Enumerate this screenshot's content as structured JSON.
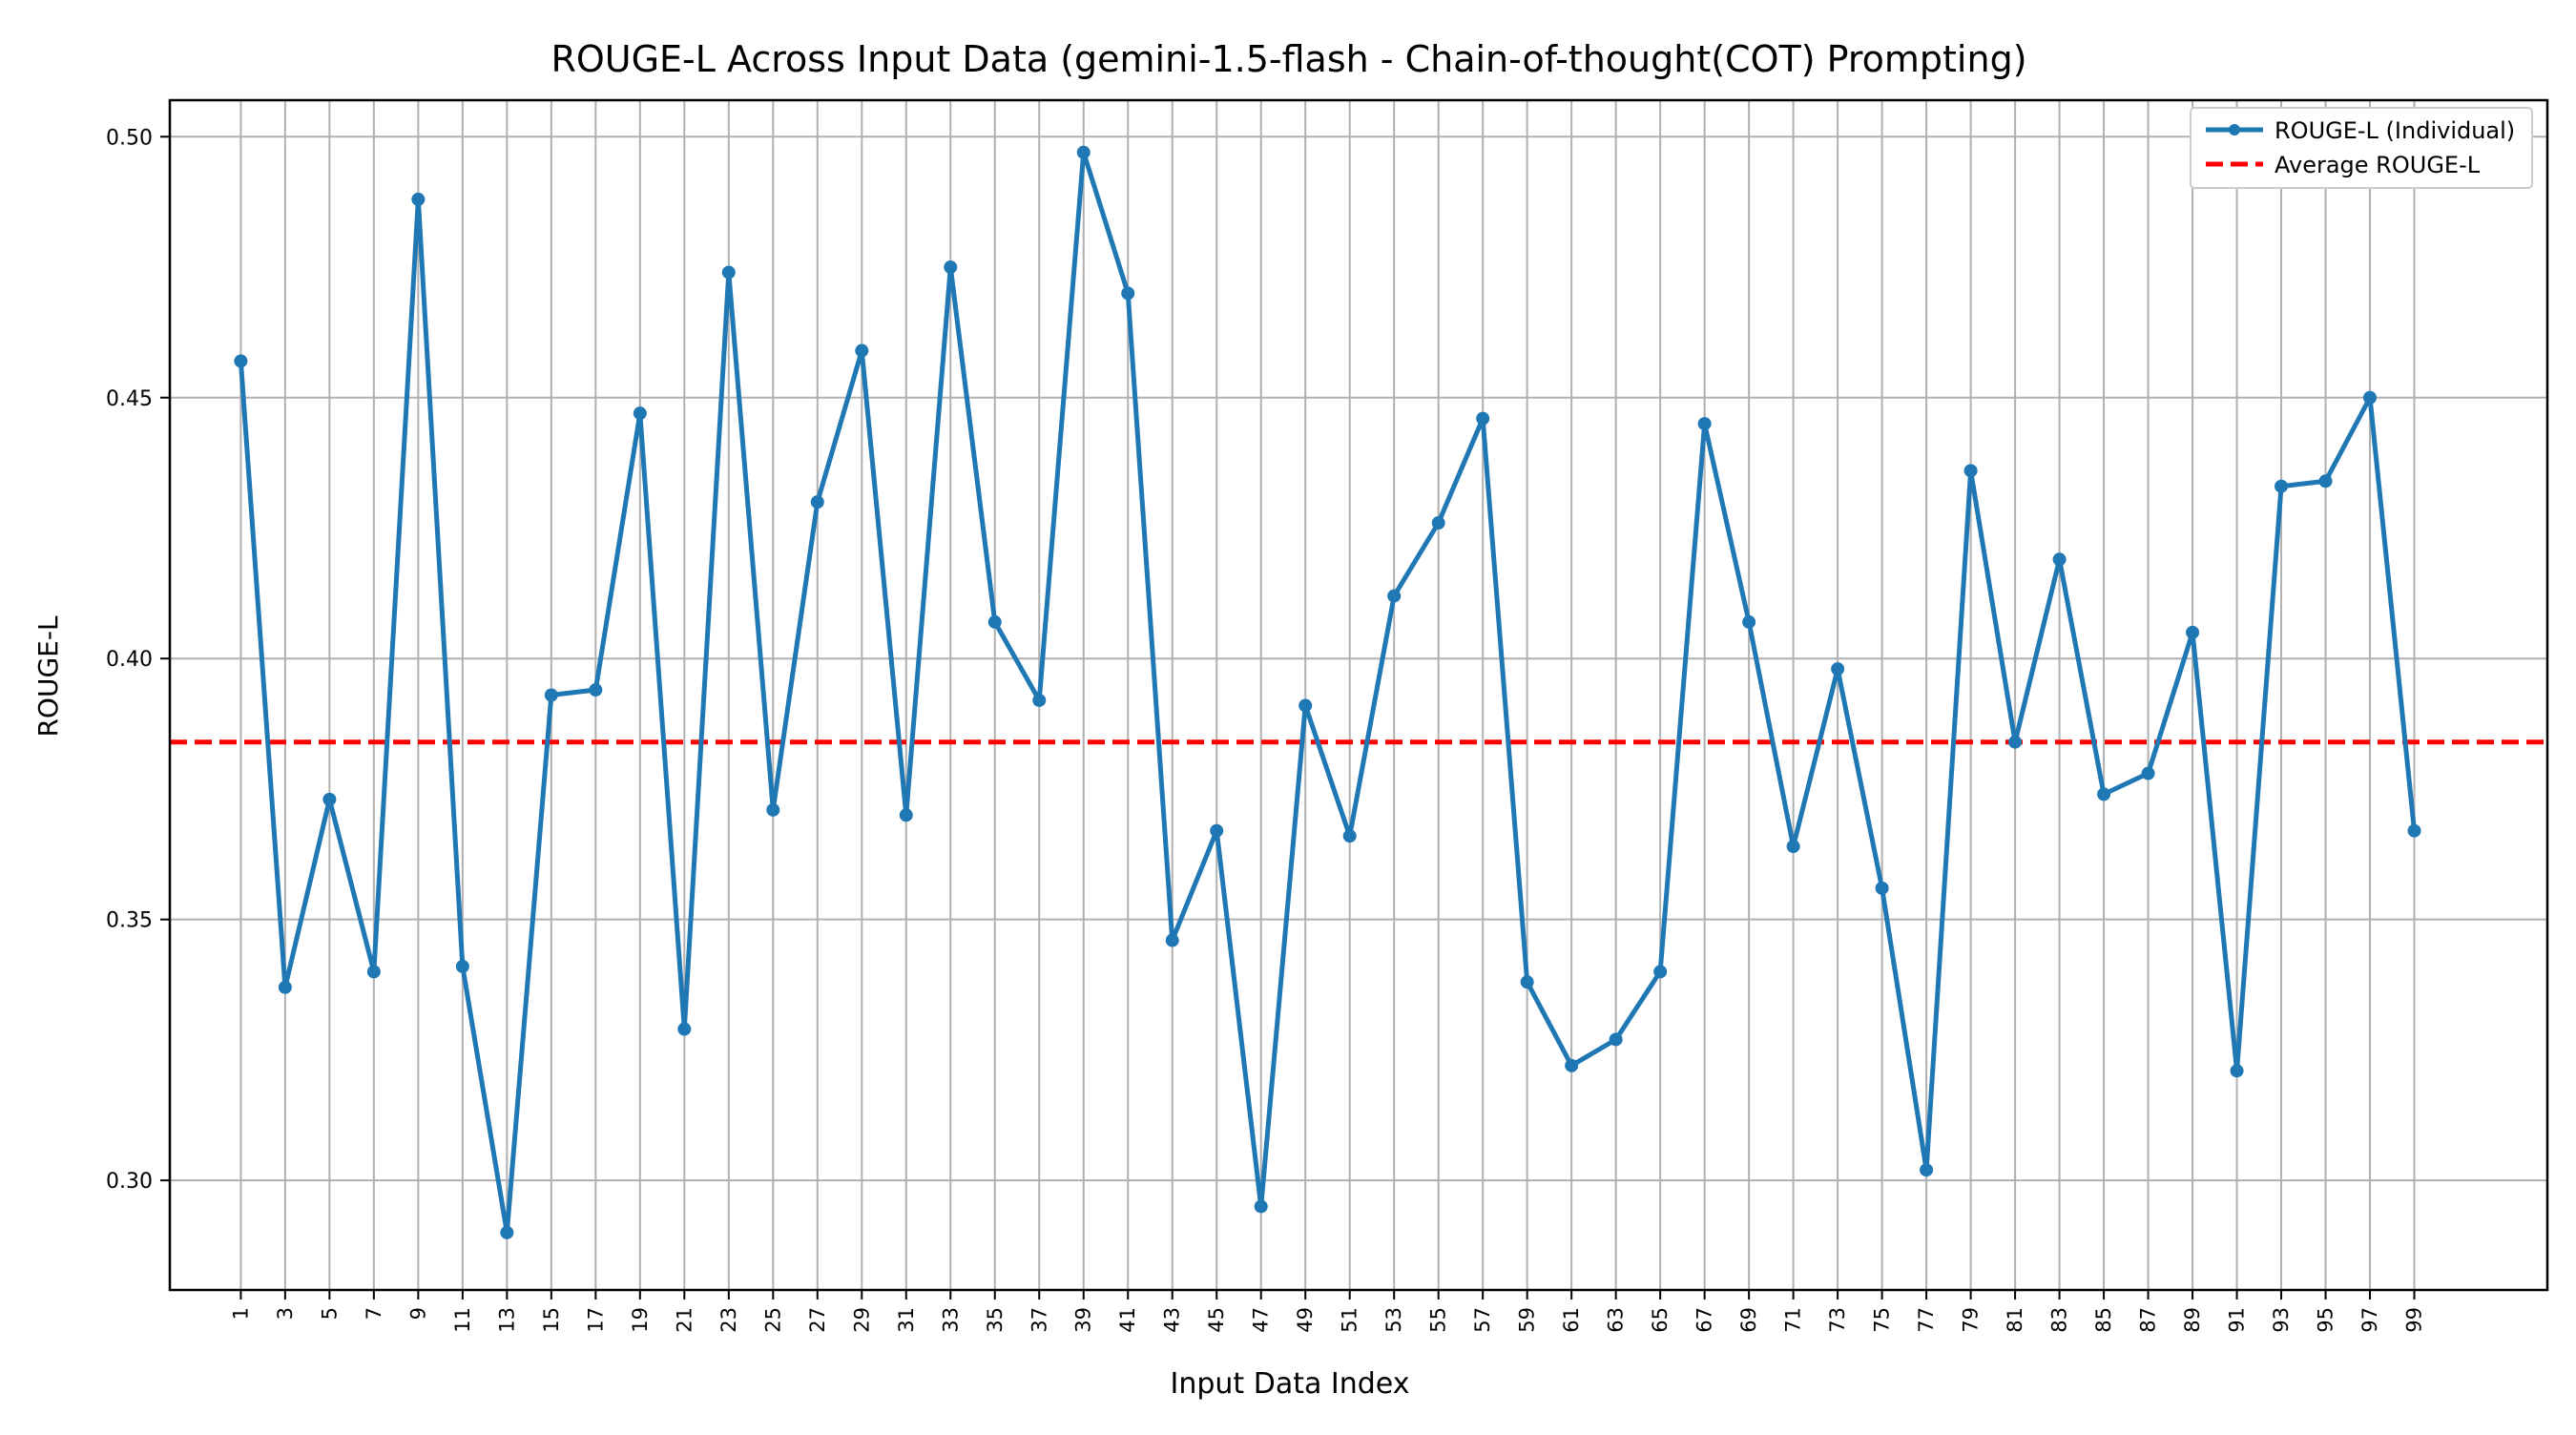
{
  "chart_data": {
    "type": "line",
    "title": "ROUGE-L Across Input Data (gemini-1.5-flash - Chain-of-thought(COT) Prompting)",
    "xlabel": "Input Data Index",
    "ylabel": "ROUGE-L",
    "x": [
      1,
      3,
      5,
      7,
      9,
      11,
      13,
      15,
      17,
      19,
      21,
      23,
      25,
      27,
      29,
      31,
      33,
      35,
      37,
      39,
      41,
      43,
      45,
      47,
      49,
      51,
      53,
      55,
      57,
      59,
      61,
      63,
      65,
      67,
      69,
      71,
      73,
      75,
      77,
      79,
      81,
      83,
      85,
      87,
      89,
      91,
      93,
      95,
      97,
      99
    ],
    "y_ticks": [
      "0.30",
      "0.35",
      "0.40",
      "0.45",
      "0.50"
    ],
    "ylim": [
      0.279,
      0.507
    ],
    "xlim": [
      -2.2,
      105
    ],
    "grid": true,
    "legend_position": "top-right",
    "series": [
      {
        "name": "ROUGE-L (Individual)",
        "color": "#1f77b4",
        "style": "solid-with-markers",
        "values": [
          0.457,
          0.337,
          0.373,
          0.34,
          0.488,
          0.341,
          0.29,
          0.393,
          0.394,
          0.447,
          0.329,
          0.474,
          0.371,
          0.43,
          0.459,
          0.37,
          0.475,
          0.407,
          0.392,
          0.497,
          0.47,
          0.346,
          0.367,
          0.295,
          0.391,
          0.366,
          0.412,
          0.426,
          0.446,
          0.338,
          0.322,
          0.327,
          0.34,
          0.445,
          0.407,
          0.364,
          0.398,
          0.356,
          0.302,
          0.436,
          0.384,
          0.419,
          0.374,
          0.378,
          0.405,
          0.321,
          0.433,
          0.434,
          0.45,
          0.367
        ]
      },
      {
        "name": "Average ROUGE-L",
        "color": "#ff0000",
        "style": "dashed",
        "value": 0.384
      }
    ]
  }
}
